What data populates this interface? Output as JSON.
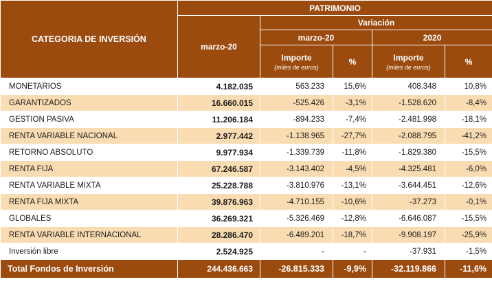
{
  "table": {
    "header": {
      "category": "CATEGORIA DE INVERSIÓN",
      "patrimonio": "PATRIMONIO",
      "patrimonio_period": "marzo-20",
      "variacion": "Variación",
      "variation_period_1": "marzo-20",
      "variation_period_2": "2020",
      "importe": "Importe",
      "importe_unit": "(miles de euros)",
      "percent": "%"
    },
    "rows": [
      {
        "category": "MONETARIOS",
        "patrimonio": "4.182.035",
        "importe_1": "563.233",
        "pct_1": "15,6%",
        "importe_2": "408.348",
        "pct_2": "10,8%"
      },
      {
        "category": "GARANTIZADOS",
        "patrimonio": "16.660.015",
        "importe_1": "-525.426",
        "pct_1": "-3,1%",
        "importe_2": "-1.528.620",
        "pct_2": "-8,4%"
      },
      {
        "category": "GESTION PASIVA",
        "patrimonio": "11.206.184",
        "importe_1": "-894.233",
        "pct_1": "-7,4%",
        "importe_2": "-2.481.998",
        "pct_2": "-18,1%"
      },
      {
        "category": "RENTA VARIABLE NACIONAL",
        "patrimonio": "2.977.442",
        "importe_1": "-1.138.965",
        "pct_1": "-27,7%",
        "importe_2": "-2.088.795",
        "pct_2": "-41,2%"
      },
      {
        "category": "RETORNO ABSOLUTO",
        "patrimonio": "9.977.934",
        "importe_1": "-1.339.739",
        "pct_1": "-11,8%",
        "importe_2": "-1.829.380",
        "pct_2": "-15,5%"
      },
      {
        "category": "RENTA FIJA",
        "patrimonio": "67.246.587",
        "importe_1": "-3.143.402",
        "pct_1": "-4,5%",
        "importe_2": "-4.325.481",
        "pct_2": "-6,0%"
      },
      {
        "category": "RENTA VARIABLE MIXTA",
        "patrimonio": "25.228.788",
        "importe_1": "-3.810.976",
        "pct_1": "-13,1%",
        "importe_2": "-3.644.451",
        "pct_2": "-12,6%"
      },
      {
        "category": "RENTA FIJA MIXTA",
        "patrimonio": "39.876.963",
        "importe_1": "-4.710.155",
        "pct_1": "-10,6%",
        "importe_2": "-37.273",
        "pct_2": "-0,1%"
      },
      {
        "category": "GLOBALES",
        "patrimonio": "36.269.321",
        "importe_1": "-5.326.469",
        "pct_1": "-12,8%",
        "importe_2": "-6.646.087",
        "pct_2": "-15,5%"
      },
      {
        "category": "RENTA VARIABLE INTERNACIONAL",
        "patrimonio": "28.286.470",
        "importe_1": "-6.489.201",
        "pct_1": "-18,7%",
        "importe_2": "-9.908.197",
        "pct_2": "-25,9%"
      },
      {
        "category": "Inversión libre",
        "patrimonio": "2.524.925",
        "importe_1": "-",
        "pct_1": "-",
        "importe_2": "-37.931",
        "pct_2": "-1,5%"
      }
    ],
    "total": {
      "label": "Total Fondos de Inversión",
      "patrimonio": "244.436.663",
      "importe_1": "-26.815.333",
      "pct_1": "-9,9%",
      "importe_2": "-32.119.866",
      "pct_2": "-11,6%"
    }
  },
  "colors": {
    "header_bg": "#9C4B0F",
    "total_bg": "#9C4B0F",
    "alt_row_bg": "#FADCB2",
    "header_text": "#FFFFFF",
    "body_text": "#1A1A1A"
  },
  "chart_data": {
    "type": "table",
    "title": "PATRIMONIO",
    "columns": [
      "CATEGORIA DE INVERSIÓN",
      "PATRIMONIO marzo-20",
      "Variación marzo-20 Importe (miles de euros)",
      "Variación marzo-20 %",
      "Variación 2020 Importe (miles de euros)",
      "Variación 2020 %"
    ],
    "rows": [
      [
        "MONETARIOS",
        "4.182.035",
        "563.233",
        "15,6%",
        "408.348",
        "10,8%"
      ],
      [
        "GARANTIZADOS",
        "16.660.015",
        "-525.426",
        "-3,1%",
        "-1.528.620",
        "-8,4%"
      ],
      [
        "GESTION PASIVA",
        "11.206.184",
        "-894.233",
        "-7,4%",
        "-2.481.998",
        "-18,1%"
      ],
      [
        "RENTA VARIABLE NACIONAL",
        "2.977.442",
        "-1.138.965",
        "-27,7%",
        "-2.088.795",
        "-41,2%"
      ],
      [
        "RETORNO ABSOLUTO",
        "9.977.934",
        "-1.339.739",
        "-11,8%",
        "-1.829.380",
        "-15,5%"
      ],
      [
        "RENTA FIJA",
        "67.246.587",
        "-3.143.402",
        "-4,5%",
        "-4.325.481",
        "-6,0%"
      ],
      [
        "RENTA VARIABLE MIXTA",
        "25.228.788",
        "-3.810.976",
        "-13,1%",
        "-3.644.451",
        "-12,6%"
      ],
      [
        "RENTA FIJA MIXTA",
        "39.876.963",
        "-4.710.155",
        "-10,6%",
        "-37.273",
        "-0,1%"
      ],
      [
        "GLOBALES",
        "36.269.321",
        "-5.326.469",
        "-12,8%",
        "-6.646.087",
        "-15,5%"
      ],
      [
        "RENTA VARIABLE INTERNACIONAL",
        "28.286.470",
        "-6.489.201",
        "-18,7%",
        "-9.908.197",
        "-25,9%"
      ],
      [
        "Inversión libre",
        "2.524.925",
        "-",
        "-",
        "-37.931",
        "-1,5%"
      ],
      [
        "Total Fondos de Inversión",
        "244.436.663",
        "-26.815.333",
        "-9,9%",
        "-32.119.866",
        "-11,6%"
      ]
    ]
  }
}
